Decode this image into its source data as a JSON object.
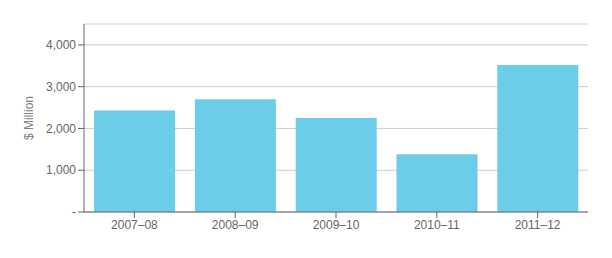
{
  "chart_data": {
    "type": "bar",
    "categories": [
      "2007–08",
      "2008–09",
      "2009–10",
      "2010–11",
      "2011–12"
    ],
    "values": [
      2430,
      2700,
      2250,
      1380,
      3520
    ],
    "color": "#6CCDE8",
    "ylabel": "$ Million",
    "ylim": [
      0,
      4500
    ],
    "yticks": [
      {
        "value": 0,
        "label": "-"
      },
      {
        "value": 1000,
        "label": "1,000"
      },
      {
        "value": 2000,
        "label": "2,000"
      },
      {
        "value": 3000,
        "label": "3,000"
      },
      {
        "value": 4000,
        "label": "4,000"
      }
    ],
    "grid": true
  }
}
